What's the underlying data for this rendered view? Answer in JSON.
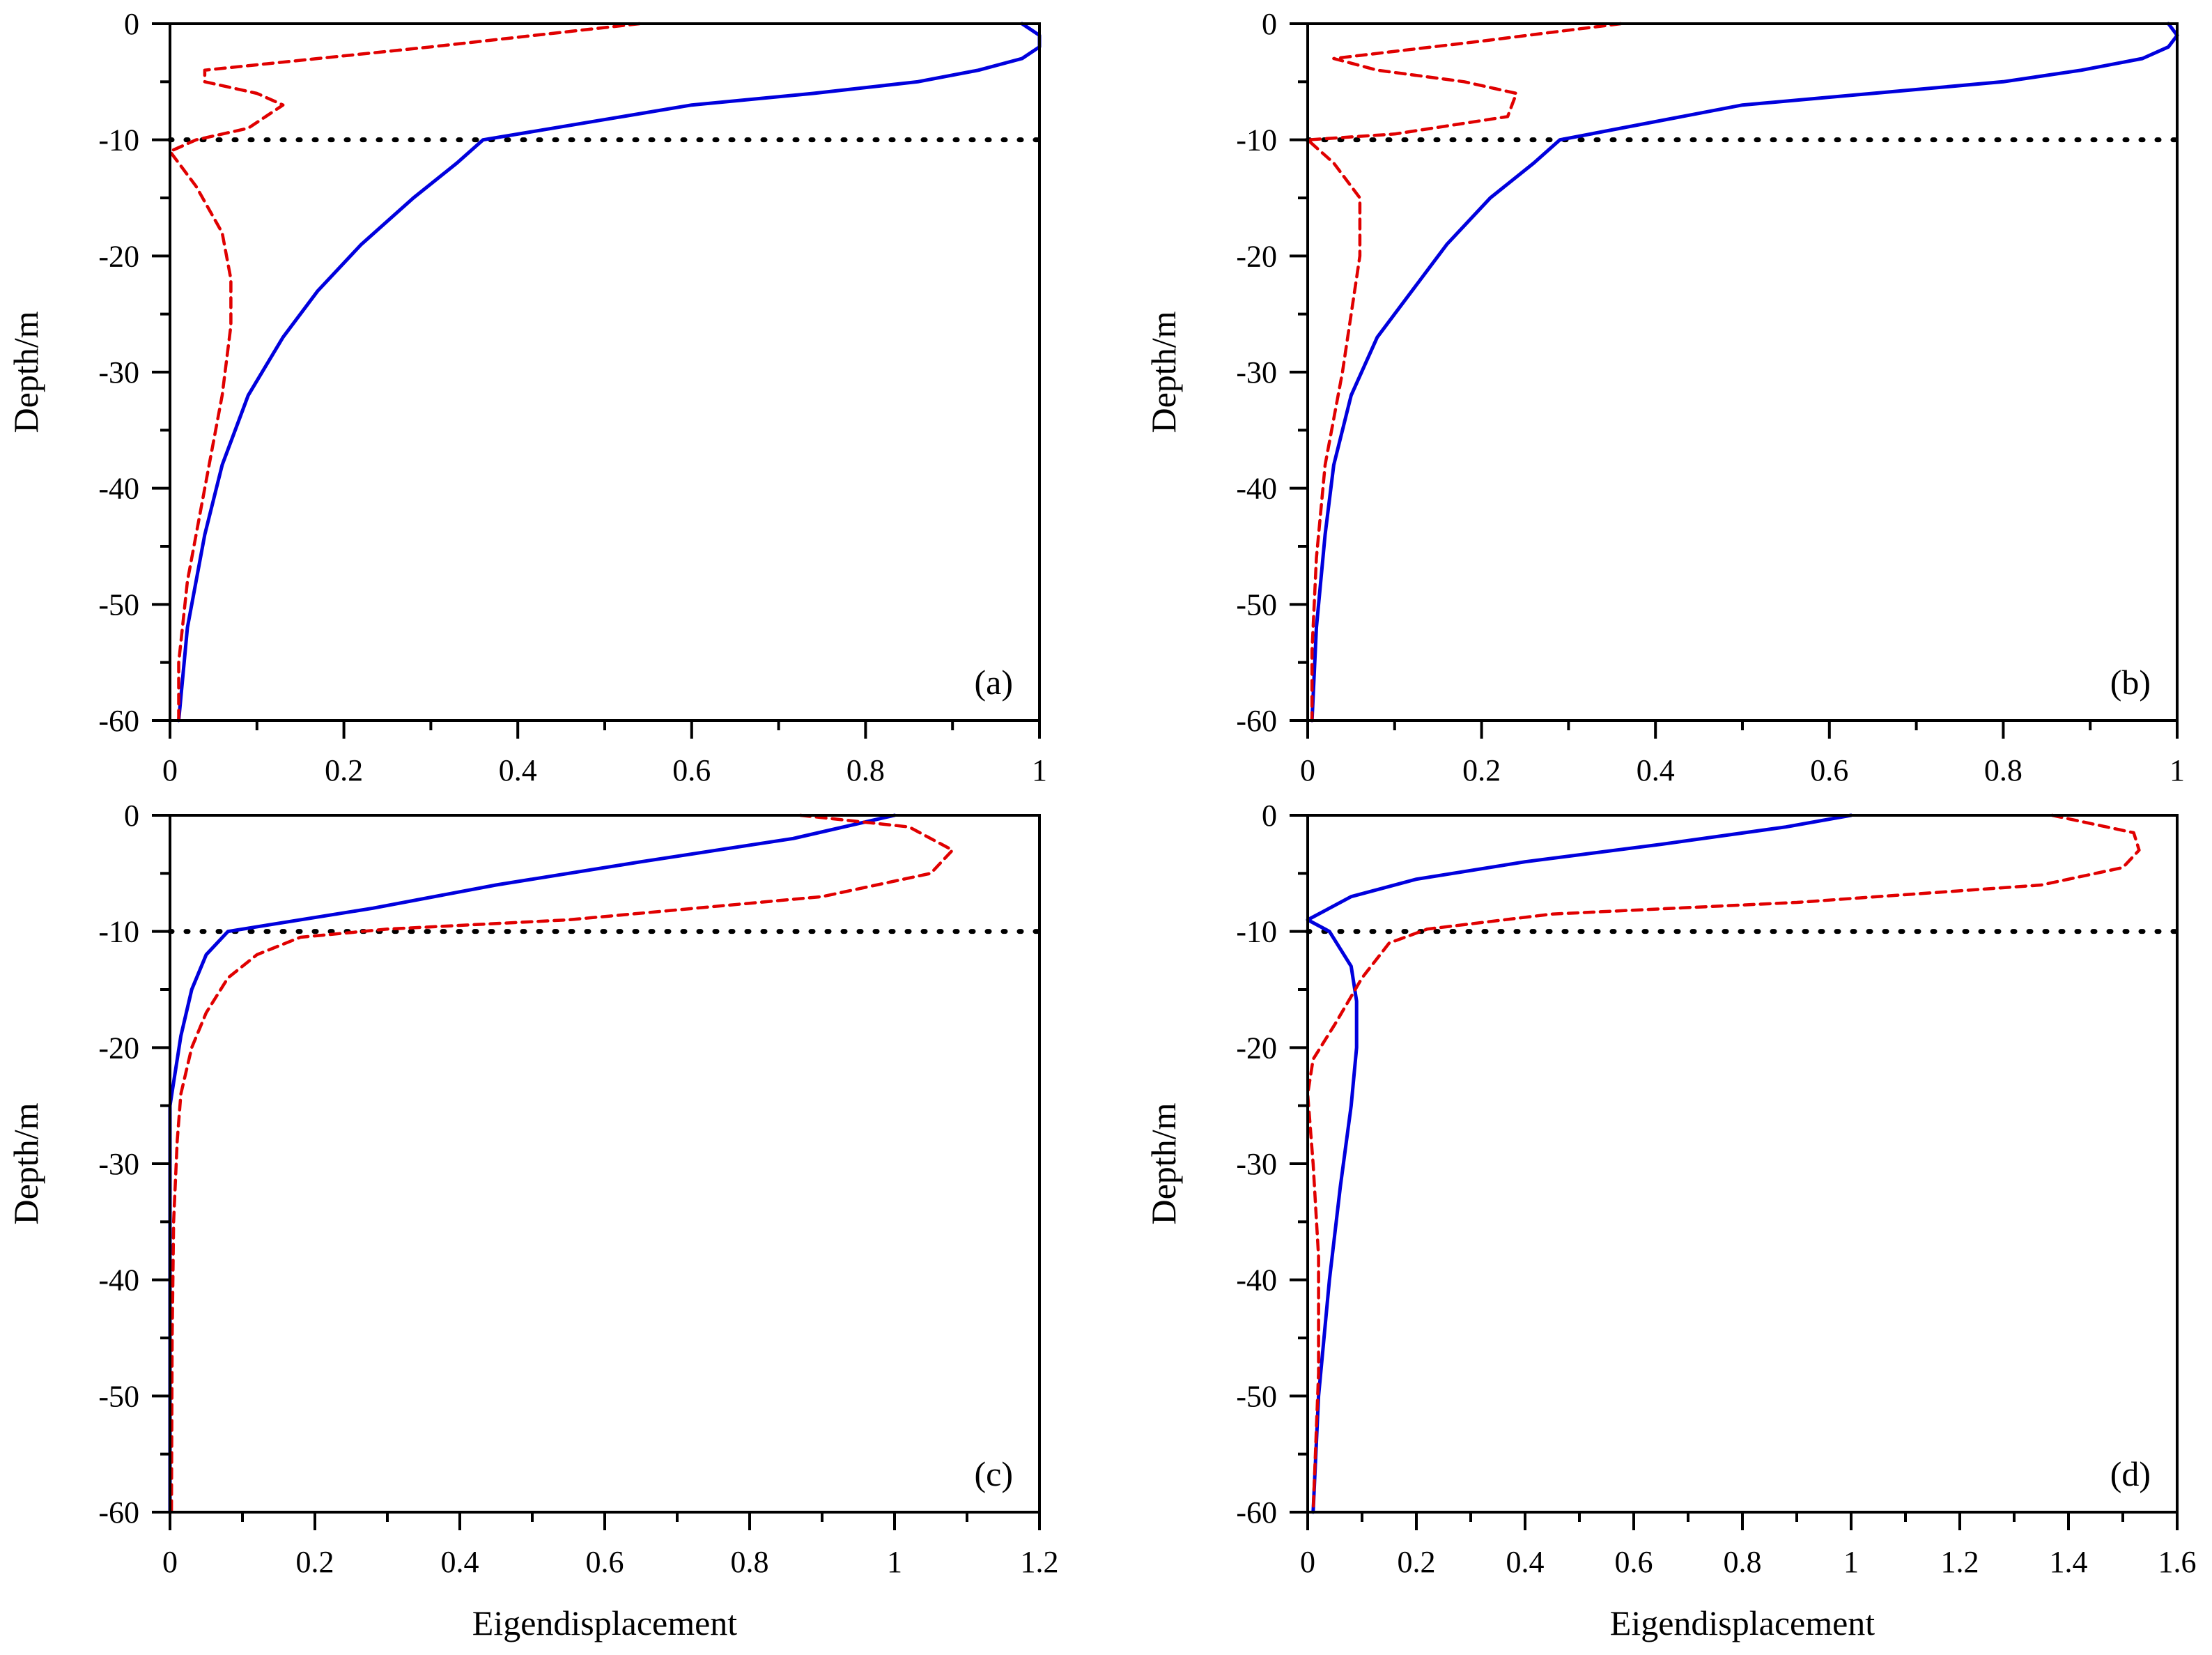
{
  "figure": {
    "colors": {
      "blue": "#0000dd",
      "red": "#e00000",
      "ref": "#000000",
      "axis": "#000000"
    },
    "line_styles": {
      "blue": "solid",
      "red": "dashed",
      "ref": "dotted"
    }
  },
  "chart_data": [
    {
      "type": "line",
      "panel_label": "(a)",
      "xlabel": "",
      "ylabel": "Depth/m",
      "xlim": [
        0,
        1
      ],
      "ylim": [
        -60,
        0
      ],
      "xticks": [
        0,
        0.2,
        0.4,
        0.6,
        0.8,
        1
      ],
      "xtick_labels": [
        "0",
        "0.2",
        "0.4",
        "0.6",
        "0.8",
        "1"
      ],
      "yticks": [
        0,
        -10,
        -20,
        -30,
        -40,
        -50,
        -60
      ],
      "ytick_labels": [
        "0",
        "-10",
        "-20",
        "-30",
        "-40",
        "-50",
        "-60"
      ],
      "reference_line_y": -10,
      "series": [
        {
          "color": "blue",
          "style": "solid",
          "x": [
            0.98,
            1.0,
            1.0,
            0.98,
            0.93,
            0.86,
            0.74,
            0.6,
            0.36,
            0.33,
            0.28,
            0.22,
            0.17,
            0.13,
            0.09,
            0.06,
            0.04,
            0.02,
            0.01
          ],
          "y": [
            0,
            -1,
            -2,
            -3,
            -4,
            -5,
            -6,
            -7,
            -10,
            -12,
            -15,
            -19,
            -23,
            -27,
            -32,
            -38,
            -44,
            -52,
            -60
          ]
        },
        {
          "color": "red",
          "style": "dashed",
          "x": [
            0.54,
            0.3,
            0.04,
            0.04,
            0.1,
            0.13,
            0.09,
            0.03,
            0.0,
            0.03,
            0.06,
            0.07,
            0.07,
            0.06,
            0.04,
            0.02,
            0.01,
            0.01
          ],
          "y": [
            0,
            -2,
            -4,
            -5,
            -6,
            -7,
            -9,
            -10,
            -11,
            -14,
            -18,
            -22,
            -26,
            -32,
            -40,
            -48,
            -55,
            -60
          ]
        }
      ]
    },
    {
      "type": "line",
      "panel_label": "(b)",
      "xlabel": "",
      "ylabel": "Depth/m",
      "xlim": [
        0,
        1
      ],
      "ylim": [
        -60,
        0
      ],
      "xticks": [
        0,
        0.2,
        0.4,
        0.6,
        0.8,
        1
      ],
      "xtick_labels": [
        "0",
        "0.2",
        "0.4",
        "0.6",
        "0.8",
        "1"
      ],
      "yticks": [
        0,
        -10,
        -20,
        -30,
        -40,
        -50,
        -60
      ],
      "ytick_labels": [
        "0",
        "-10",
        "-20",
        "-30",
        "-40",
        "-50",
        "-60"
      ],
      "reference_line_y": -10,
      "series": [
        {
          "color": "blue",
          "style": "solid",
          "x": [
            0.99,
            1.0,
            0.99,
            0.96,
            0.89,
            0.8,
            0.65,
            0.5,
            0.29,
            0.26,
            0.21,
            0.16,
            0.12,
            0.08,
            0.05,
            0.03,
            0.02,
            0.01,
            0.005
          ],
          "y": [
            0,
            -1,
            -2,
            -3,
            -4,
            -5,
            -6,
            -7,
            -10,
            -12,
            -15,
            -19,
            -23,
            -27,
            -32,
            -38,
            -44,
            -52,
            -60
          ]
        },
        {
          "color": "red",
          "style": "dashed",
          "x": [
            0.36,
            0.2,
            0.03,
            0.08,
            0.18,
            0.24,
            0.23,
            0.1,
            0.0,
            0.03,
            0.06,
            0.06,
            0.05,
            0.04,
            0.02,
            0.01,
            0.005,
            0.005
          ],
          "y": [
            0,
            -1.5,
            -3,
            -4,
            -5,
            -6,
            -8,
            -9.5,
            -10,
            -12,
            -15,
            -20,
            -25,
            -30,
            -38,
            -46,
            -54,
            -60
          ]
        }
      ]
    },
    {
      "type": "line",
      "panel_label": "(c)",
      "xlabel": "Eigendisplacement",
      "ylabel": "Depth/m",
      "xlim": [
        0,
        1.2
      ],
      "ylim": [
        -60,
        0
      ],
      "xticks": [
        0,
        0.2,
        0.4,
        0.6,
        0.8,
        1,
        1.2
      ],
      "xtick_labels": [
        "0",
        "0.2",
        "0.4",
        "0.6",
        "0.8",
        "1",
        "1.2"
      ],
      "yticks": [
        0,
        -10,
        -20,
        -30,
        -40,
        -50,
        -60
      ],
      "ytick_labels": [
        "0",
        "-10",
        "-20",
        "-30",
        "-40",
        "-50",
        "-60"
      ],
      "reference_line_y": -10,
      "series": [
        {
          "color": "blue",
          "style": "solid",
          "x": [
            1.0,
            0.86,
            0.65,
            0.45,
            0.28,
            0.13,
            0.08,
            0.05,
            0.03,
            0.015,
            0.005,
            0.0,
            0.0,
            0.0,
            0.0
          ],
          "y": [
            0,
            -2,
            -4,
            -6,
            -8,
            -9.5,
            -10,
            -12,
            -15,
            -19,
            -23,
            -25,
            -30,
            -45,
            -60
          ]
        },
        {
          "color": "red",
          "style": "dashed",
          "x": [
            0.87,
            1.02,
            1.08,
            1.05,
            0.9,
            0.55,
            0.3,
            0.18,
            0.12,
            0.08,
            0.05,
            0.03,
            0.015,
            0.01,
            0.005,
            0.003,
            0.002
          ],
          "y": [
            0,
            -1,
            -3,
            -5,
            -7,
            -9,
            -9.8,
            -10.5,
            -12,
            -14,
            -17,
            -20,
            -24,
            -28,
            -35,
            -45,
            -60
          ]
        }
      ]
    },
    {
      "type": "line",
      "panel_label": "(d)",
      "xlabel": "Eigendisplacement",
      "ylabel": "Depth/m",
      "xlim": [
        0,
        1.6
      ],
      "ylim": [
        -60,
        0
      ],
      "xticks": [
        0,
        0.2,
        0.4,
        0.6,
        0.8,
        1,
        1.2,
        1.4,
        1.6
      ],
      "xtick_labels": [
        "0",
        "0.2",
        "0.4",
        "0.6",
        "0.8",
        "1",
        "1.2",
        "1.4",
        "1.6"
      ],
      "yticks": [
        0,
        -10,
        -20,
        -30,
        -40,
        -50,
        -60
      ],
      "ytick_labels": [
        "0",
        "-10",
        "-20",
        "-30",
        "-40",
        "-50",
        "-60"
      ],
      "reference_line_y": -10,
      "series": [
        {
          "color": "blue",
          "style": "solid",
          "x": [
            1.0,
            0.88,
            0.65,
            0.4,
            0.2,
            0.08,
            0.0,
            0.04,
            0.08,
            0.09,
            0.09,
            0.08,
            0.06,
            0.04,
            0.02,
            0.01
          ],
          "y": [
            0,
            -1,
            -2.5,
            -4,
            -5.5,
            -7,
            -9,
            -10,
            -13,
            -16,
            -20,
            -25,
            -32,
            -40,
            -50,
            -60
          ]
        },
        {
          "color": "red",
          "style": "dashed",
          "x": [
            1.37,
            1.52,
            1.53,
            1.5,
            1.35,
            0.9,
            0.45,
            0.22,
            0.15,
            0.1,
            0.05,
            0.01,
            0.0,
            0.01,
            0.02,
            0.02,
            0.01
          ],
          "y": [
            0,
            -1.5,
            -3,
            -4.5,
            -6,
            -7.5,
            -8.5,
            -9.8,
            -11,
            -14,
            -18,
            -21,
            -24,
            -30,
            -38,
            -48,
            -60
          ]
        }
      ]
    }
  ]
}
